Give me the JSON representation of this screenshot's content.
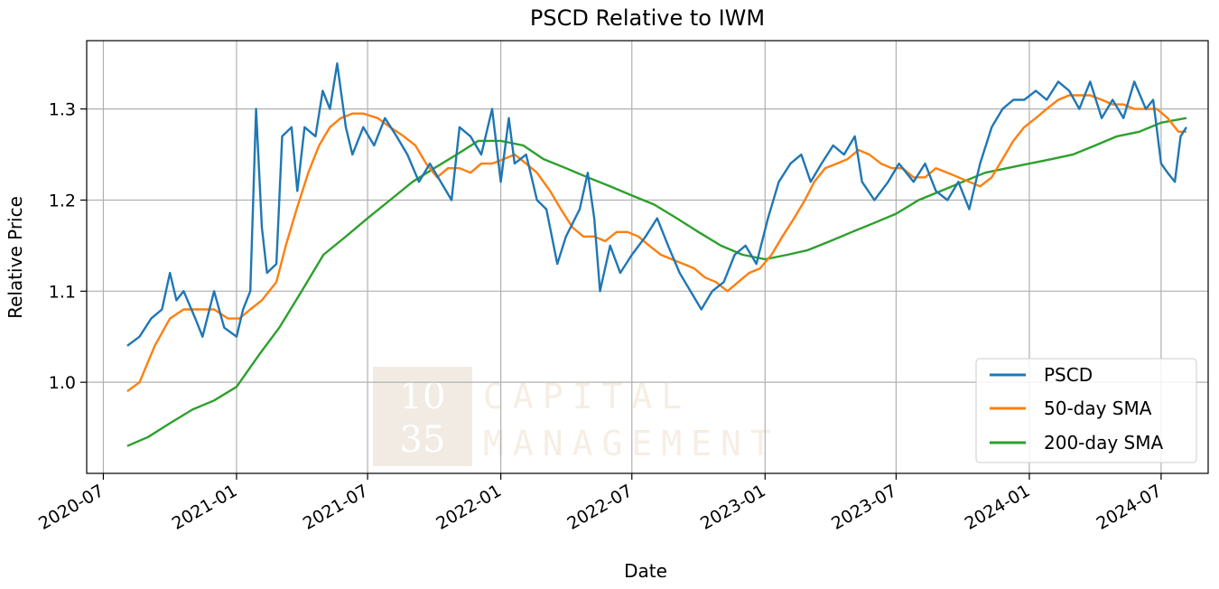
{
  "chart_data": {
    "type": "line",
    "title": "PSCD Relative to IWM",
    "xlabel": "Date",
    "ylabel": "Relative Price",
    "xlim": [
      "2020-06-08",
      "2024-09-04"
    ],
    "ylim": [
      0.9,
      1.375
    ],
    "xticks": [
      "2020-07",
      "2021-01",
      "2021-07",
      "2022-01",
      "2022-07",
      "2023-01",
      "2023-07",
      "2024-01",
      "2024-07"
    ],
    "xtick_dates": [
      "2020-07-01",
      "2021-01-01",
      "2021-07-01",
      "2022-01-01",
      "2022-07-01",
      "2023-01-01",
      "2023-07-01",
      "2024-01-01",
      "2024-07-01"
    ],
    "yticks": [
      "1.0",
      "1.1",
      "1.2",
      "1.3"
    ],
    "ytick_values": [
      1.0,
      1.1,
      1.2,
      1.3
    ],
    "grid": true,
    "legend_position": "lower right",
    "series": [
      {
        "name": "PSCD",
        "color": "#1f77b4",
        "points": [
          [
            "2020-08-03",
            1.04
          ],
          [
            "2020-08-20",
            1.05
          ],
          [
            "2020-09-05",
            1.07
          ],
          [
            "2020-09-20",
            1.08
          ],
          [
            "2020-10-01",
            1.12
          ],
          [
            "2020-10-10",
            1.09
          ],
          [
            "2020-10-20",
            1.1
          ],
          [
            "2020-11-05",
            1.07
          ],
          [
            "2020-11-15",
            1.05
          ],
          [
            "2020-12-01",
            1.1
          ],
          [
            "2020-12-15",
            1.06
          ],
          [
            "2021-01-01",
            1.05
          ],
          [
            "2021-01-10",
            1.08
          ],
          [
            "2021-01-20",
            1.1
          ],
          [
            "2021-01-28",
            1.3
          ],
          [
            "2021-02-05",
            1.17
          ],
          [
            "2021-02-12",
            1.12
          ],
          [
            "2021-02-25",
            1.13
          ],
          [
            "2021-03-05",
            1.27
          ],
          [
            "2021-03-18",
            1.28
          ],
          [
            "2021-03-26",
            1.21
          ],
          [
            "2021-04-05",
            1.28
          ],
          [
            "2021-04-20",
            1.27
          ],
          [
            "2021-04-30",
            1.32
          ],
          [
            "2021-05-10",
            1.3
          ],
          [
            "2021-05-20",
            1.35
          ],
          [
            "2021-06-01",
            1.28
          ],
          [
            "2021-06-10",
            1.25
          ],
          [
            "2021-06-25",
            1.28
          ],
          [
            "2021-07-10",
            1.26
          ],
          [
            "2021-07-25",
            1.29
          ],
          [
            "2021-08-10",
            1.27
          ],
          [
            "2021-08-25",
            1.25
          ],
          [
            "2021-09-10",
            1.22
          ],
          [
            "2021-09-25",
            1.24
          ],
          [
            "2021-10-10",
            1.22
          ],
          [
            "2021-10-25",
            1.2
          ],
          [
            "2021-11-05",
            1.28
          ],
          [
            "2021-11-20",
            1.27
          ],
          [
            "2021-12-05",
            1.25
          ],
          [
            "2021-12-20",
            1.3
          ],
          [
            "2022-01-01",
            1.22
          ],
          [
            "2022-01-12",
            1.29
          ],
          [
            "2022-01-20",
            1.24
          ],
          [
            "2022-02-05",
            1.25
          ],
          [
            "2022-02-20",
            1.2
          ],
          [
            "2022-03-05",
            1.19
          ],
          [
            "2022-03-20",
            1.13
          ],
          [
            "2022-04-01",
            1.16
          ],
          [
            "2022-04-20",
            1.19
          ],
          [
            "2022-05-01",
            1.23
          ],
          [
            "2022-05-10",
            1.18
          ],
          [
            "2022-05-18",
            1.1
          ],
          [
            "2022-06-01",
            1.15
          ],
          [
            "2022-06-15",
            1.12
          ],
          [
            "2022-07-01",
            1.14
          ],
          [
            "2022-07-20",
            1.16
          ],
          [
            "2022-08-05",
            1.18
          ],
          [
            "2022-08-20",
            1.15
          ],
          [
            "2022-09-05",
            1.12
          ],
          [
            "2022-09-20",
            1.1
          ],
          [
            "2022-10-05",
            1.08
          ],
          [
            "2022-10-20",
            1.1
          ],
          [
            "2022-11-05",
            1.11
          ],
          [
            "2022-11-20",
            1.14
          ],
          [
            "2022-12-05",
            1.15
          ],
          [
            "2022-12-20",
            1.13
          ],
          [
            "2023-01-05",
            1.18
          ],
          [
            "2023-01-20",
            1.22
          ],
          [
            "2023-02-05",
            1.24
          ],
          [
            "2023-02-20",
            1.25
          ],
          [
            "2023-03-05",
            1.22
          ],
          [
            "2023-03-20",
            1.24
          ],
          [
            "2023-04-05",
            1.26
          ],
          [
            "2023-04-20",
            1.25
          ],
          [
            "2023-05-05",
            1.27
          ],
          [
            "2023-05-15",
            1.22
          ],
          [
            "2023-06-01",
            1.2
          ],
          [
            "2023-06-20",
            1.22
          ],
          [
            "2023-07-05",
            1.24
          ],
          [
            "2023-07-25",
            1.22
          ],
          [
            "2023-08-10",
            1.24
          ],
          [
            "2023-08-25",
            1.21
          ],
          [
            "2023-09-10",
            1.2
          ],
          [
            "2023-09-25",
            1.22
          ],
          [
            "2023-10-10",
            1.19
          ],
          [
            "2023-10-25",
            1.24
          ],
          [
            "2023-11-10",
            1.28
          ],
          [
            "2023-11-25",
            1.3
          ],
          [
            "2023-12-10",
            1.31
          ],
          [
            "2023-12-25",
            1.31
          ],
          [
            "2024-01-10",
            1.32
          ],
          [
            "2024-01-25",
            1.31
          ],
          [
            "2024-02-10",
            1.33
          ],
          [
            "2024-02-25",
            1.32
          ],
          [
            "2024-03-10",
            1.3
          ],
          [
            "2024-03-25",
            1.33
          ],
          [
            "2024-04-10",
            1.29
          ],
          [
            "2024-04-25",
            1.31
          ],
          [
            "2024-05-10",
            1.29
          ],
          [
            "2024-05-25",
            1.33
          ],
          [
            "2024-06-10",
            1.3
          ],
          [
            "2024-06-20",
            1.31
          ],
          [
            "2024-07-01",
            1.24
          ],
          [
            "2024-07-10",
            1.23
          ],
          [
            "2024-07-20",
            1.22
          ],
          [
            "2024-07-28",
            1.27
          ],
          [
            "2024-08-05",
            1.28
          ]
        ]
      },
      {
        "name": "50-day SMA",
        "color": "#ff7f0e",
        "points": [
          [
            "2020-08-03",
            0.99
          ],
          [
            "2020-08-20",
            1.0
          ],
          [
            "2020-09-10",
            1.04
          ],
          [
            "2020-10-01",
            1.07
          ],
          [
            "2020-10-20",
            1.08
          ],
          [
            "2020-11-10",
            1.08
          ],
          [
            "2020-12-01",
            1.08
          ],
          [
            "2020-12-20",
            1.07
          ],
          [
            "2021-01-05",
            1.07
          ],
          [
            "2021-01-20",
            1.08
          ],
          [
            "2021-02-05",
            1.09
          ],
          [
            "2021-02-25",
            1.11
          ],
          [
            "2021-03-10",
            1.15
          ],
          [
            "2021-03-25",
            1.19
          ],
          [
            "2021-04-10",
            1.23
          ],
          [
            "2021-04-25",
            1.26
          ],
          [
            "2021-05-10",
            1.28
          ],
          [
            "2021-05-25",
            1.29
          ],
          [
            "2021-06-10",
            1.295
          ],
          [
            "2021-06-25",
            1.295
          ],
          [
            "2021-07-15",
            1.29
          ],
          [
            "2021-08-01",
            1.28
          ],
          [
            "2021-08-20",
            1.27
          ],
          [
            "2021-09-05",
            1.26
          ],
          [
            "2021-09-20",
            1.24
          ],
          [
            "2021-10-05",
            1.225
          ],
          [
            "2021-10-20",
            1.235
          ],
          [
            "2021-11-05",
            1.235
          ],
          [
            "2021-11-20",
            1.23
          ],
          [
            "2021-12-05",
            1.24
          ],
          [
            "2021-12-20",
            1.24
          ],
          [
            "2022-01-05",
            1.245
          ],
          [
            "2022-01-20",
            1.25
          ],
          [
            "2022-02-05",
            1.24
          ],
          [
            "2022-02-20",
            1.23
          ],
          [
            "2022-03-10",
            1.21
          ],
          [
            "2022-03-25",
            1.19
          ],
          [
            "2022-04-10",
            1.17
          ],
          [
            "2022-04-25",
            1.16
          ],
          [
            "2022-05-10",
            1.16
          ],
          [
            "2022-05-25",
            1.155
          ],
          [
            "2022-06-10",
            1.165
          ],
          [
            "2022-06-25",
            1.165
          ],
          [
            "2022-07-10",
            1.16
          ],
          [
            "2022-07-25",
            1.15
          ],
          [
            "2022-08-10",
            1.14
          ],
          [
            "2022-08-25",
            1.135
          ],
          [
            "2022-09-10",
            1.13
          ],
          [
            "2022-09-25",
            1.125
          ],
          [
            "2022-10-10",
            1.115
          ],
          [
            "2022-10-25",
            1.11
          ],
          [
            "2022-11-10",
            1.1
          ],
          [
            "2022-11-25",
            1.11
          ],
          [
            "2022-12-10",
            1.12
          ],
          [
            "2022-12-25",
            1.125
          ],
          [
            "2023-01-10",
            1.14
          ],
          [
            "2023-01-25",
            1.16
          ],
          [
            "2023-02-10",
            1.18
          ],
          [
            "2023-02-25",
            1.2
          ],
          [
            "2023-03-10",
            1.22
          ],
          [
            "2023-03-25",
            1.235
          ],
          [
            "2023-04-10",
            1.24
          ],
          [
            "2023-04-25",
            1.245
          ],
          [
            "2023-05-10",
            1.255
          ],
          [
            "2023-05-25",
            1.25
          ],
          [
            "2023-06-10",
            1.24
          ],
          [
            "2023-06-25",
            1.235
          ],
          [
            "2023-07-10",
            1.235
          ],
          [
            "2023-07-25",
            1.225
          ],
          [
            "2023-08-10",
            1.225
          ],
          [
            "2023-08-25",
            1.235
          ],
          [
            "2023-09-10",
            1.23
          ],
          [
            "2023-09-25",
            1.225
          ],
          [
            "2023-10-10",
            1.22
          ],
          [
            "2023-10-25",
            1.215
          ],
          [
            "2023-11-10",
            1.225
          ],
          [
            "2023-11-25",
            1.245
          ],
          [
            "2023-12-10",
            1.265
          ],
          [
            "2023-12-25",
            1.28
          ],
          [
            "2024-01-10",
            1.29
          ],
          [
            "2024-01-25",
            1.3
          ],
          [
            "2024-02-10",
            1.31
          ],
          [
            "2024-02-25",
            1.315
          ],
          [
            "2024-03-10",
            1.315
          ],
          [
            "2024-03-25",
            1.315
          ],
          [
            "2024-04-10",
            1.31
          ],
          [
            "2024-04-25",
            1.305
          ],
          [
            "2024-05-10",
            1.305
          ],
          [
            "2024-05-25",
            1.3
          ],
          [
            "2024-06-10",
            1.3
          ],
          [
            "2024-06-25",
            1.3
          ],
          [
            "2024-07-10",
            1.29
          ],
          [
            "2024-07-25",
            1.275
          ],
          [
            "2024-08-05",
            1.275
          ]
        ]
      },
      {
        "name": "200-day SMA",
        "color": "#2ca02c",
        "points": [
          [
            "2020-08-03",
            0.93
          ],
          [
            "2020-09-01",
            0.94
          ],
          [
            "2020-10-01",
            0.955
          ],
          [
            "2020-11-01",
            0.97
          ],
          [
            "2020-12-01",
            0.98
          ],
          [
            "2021-01-01",
            0.995
          ],
          [
            "2021-02-01",
            1.03
          ],
          [
            "2021-03-01",
            1.06
          ],
          [
            "2021-04-01",
            1.1
          ],
          [
            "2021-05-01",
            1.14
          ],
          [
            "2021-06-01",
            1.16
          ],
          [
            "2021-07-01",
            1.18
          ],
          [
            "2021-08-01",
            1.2
          ],
          [
            "2021-09-01",
            1.22
          ],
          [
            "2021-10-01",
            1.235
          ],
          [
            "2021-11-01",
            1.25
          ],
          [
            "2021-12-01",
            1.265
          ],
          [
            "2022-01-01",
            1.265
          ],
          [
            "2022-02-01",
            1.26
          ],
          [
            "2022-03-01",
            1.245
          ],
          [
            "2022-04-01",
            1.235
          ],
          [
            "2022-05-01",
            1.225
          ],
          [
            "2022-06-01",
            1.215
          ],
          [
            "2022-07-01",
            1.205
          ],
          [
            "2022-08-01",
            1.195
          ],
          [
            "2022-09-01",
            1.18
          ],
          [
            "2022-10-01",
            1.165
          ],
          [
            "2022-11-01",
            1.15
          ],
          [
            "2022-12-01",
            1.14
          ],
          [
            "2023-01-01",
            1.135
          ],
          [
            "2023-02-01",
            1.14
          ],
          [
            "2023-03-01",
            1.145
          ],
          [
            "2023-04-01",
            1.155
          ],
          [
            "2023-05-01",
            1.165
          ],
          [
            "2023-06-01",
            1.175
          ],
          [
            "2023-07-01",
            1.185
          ],
          [
            "2023-08-01",
            1.2
          ],
          [
            "2023-09-01",
            1.21
          ],
          [
            "2023-10-01",
            1.22
          ],
          [
            "2023-11-01",
            1.23
          ],
          [
            "2023-12-01",
            1.235
          ],
          [
            "2024-01-01",
            1.24
          ],
          [
            "2024-02-01",
            1.245
          ],
          [
            "2024-03-01",
            1.25
          ],
          [
            "2024-04-01",
            1.26
          ],
          [
            "2024-05-01",
            1.27
          ],
          [
            "2024-06-01",
            1.275
          ],
          [
            "2024-07-01",
            1.285
          ],
          [
            "2024-08-05",
            1.29
          ]
        ]
      }
    ]
  },
  "watermark": {
    "logo_line1": "10",
    "logo_line2": "35",
    "text_line1": "CAPITAL",
    "text_line2": "MANAGEMENT"
  }
}
